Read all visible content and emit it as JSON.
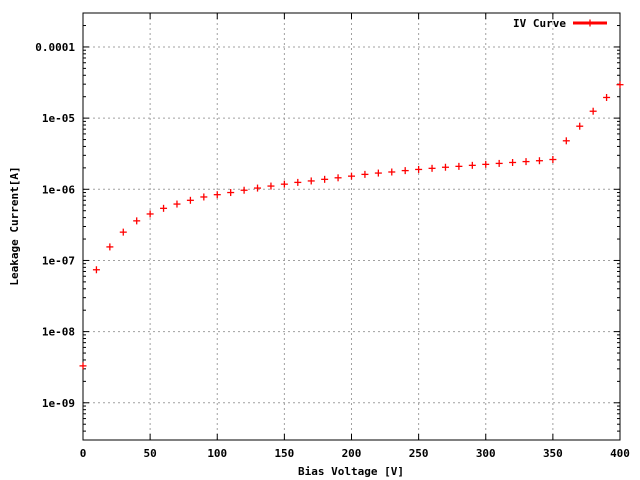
{
  "chart_data": {
    "type": "scatter",
    "title": "",
    "xlabel": "Bias Voltage [V]",
    "ylabel": "Leakage Current[A]",
    "xlim": [
      0,
      400
    ],
    "ylim": [
      3e-10,
      0.0003
    ],
    "yscale": "log",
    "grid": true,
    "legend_position": "top-right",
    "x_ticks": [
      0,
      50,
      100,
      150,
      200,
      250,
      300,
      350,
      400
    ],
    "x_tick_labels": [
      "0",
      "50",
      "100",
      "150",
      "200",
      "250",
      "300",
      "350",
      "400"
    ],
    "y_ticks": [
      1e-09,
      1e-08,
      1e-07,
      1e-06,
      1e-05,
      0.0001
    ],
    "y_tick_labels": [
      "1e-09",
      "1e-08",
      "1e-07",
      "1e-06",
      "1e-05",
      "0.0001"
    ],
    "series": [
      {
        "name": "IV Curve",
        "color": "#ff0000",
        "marker": "plus",
        "x": [
          0,
          10,
          20,
          30,
          40,
          50,
          60,
          70,
          80,
          90,
          100,
          110,
          120,
          130,
          140,
          150,
          160,
          170,
          180,
          190,
          200,
          210,
          220,
          230,
          240,
          250,
          260,
          270,
          280,
          290,
          300,
          310,
          320,
          330,
          340,
          350,
          360,
          370,
          380,
          390,
          400
        ],
        "y": [
          3.3e-09,
          7.4e-08,
          1.55e-07,
          2.5e-07,
          3.6e-07,
          4.5e-07,
          5.4e-07,
          6.2e-07,
          7e-07,
          7.8e-07,
          8.4e-07,
          9e-07,
          9.7e-07,
          1.04e-06,
          1.11e-06,
          1.18e-06,
          1.25e-06,
          1.31e-06,
          1.38e-06,
          1.45e-06,
          1.53e-06,
          1.62e-06,
          1.69e-06,
          1.75e-06,
          1.83e-06,
          1.9e-06,
          1.97e-06,
          2.04e-06,
          2.1e-06,
          2.17e-06,
          2.24e-06,
          2.31e-06,
          2.38e-06,
          2.45e-06,
          2.52e-06,
          2.62e-06,
          4.8e-06,
          7.7e-06,
          1.25e-05,
          1.95e-05,
          2.95e-05
        ]
      }
    ]
  }
}
